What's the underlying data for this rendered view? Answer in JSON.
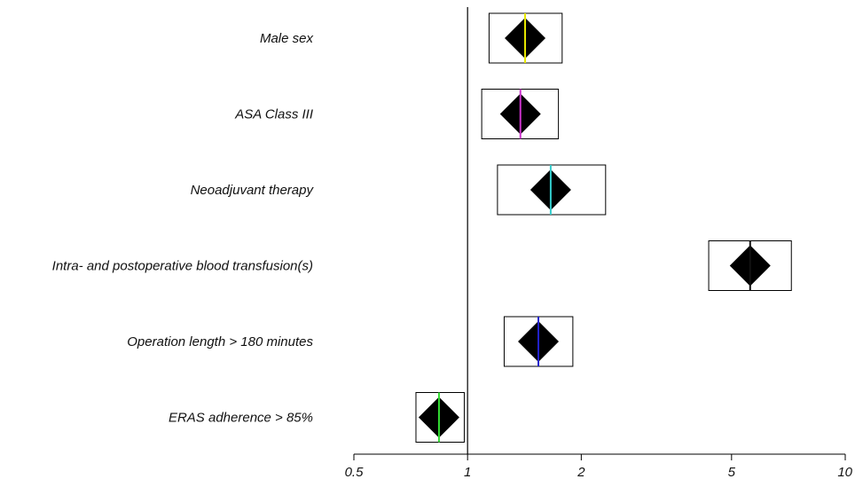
{
  "chart_data": {
    "type": "forest",
    "x_scale": "log",
    "xlim": [
      0.5,
      10
    ],
    "xticks": [
      0.5,
      1,
      2,
      5,
      10
    ],
    "xtick_labels": [
      "0.5",
      "1",
      "2",
      "5",
      "10"
    ],
    "reference_line": 1,
    "rows": [
      {
        "label": "Male sex",
        "estimate": 1.42,
        "ci_low": 1.14,
        "ci_high": 1.78,
        "marker_color": "#e8e800"
      },
      {
        "label": "ASA Class III",
        "estimate": 1.38,
        "ci_low": 1.09,
        "ci_high": 1.74,
        "marker_color": "#cc33cc"
      },
      {
        "label": "Neoadjuvant therapy",
        "estimate": 1.66,
        "ci_low": 1.2,
        "ci_high": 2.32,
        "marker_color": "#33cccc"
      },
      {
        "label": "Intra- and postoperative blood transfusion(s)",
        "estimate": 5.6,
        "ci_low": 4.35,
        "ci_high": 7.2,
        "marker_color": "#111111"
      },
      {
        "label": "Operation length > 180 minutes",
        "estimate": 1.54,
        "ci_low": 1.25,
        "ci_high": 1.9,
        "marker_color": "#2222cc"
      },
      {
        "label": "ERAS adherence > 85%",
        "estimate": 0.84,
        "ci_low": 0.73,
        "ci_high": 0.98,
        "marker_color": "#33dd33"
      }
    ]
  }
}
